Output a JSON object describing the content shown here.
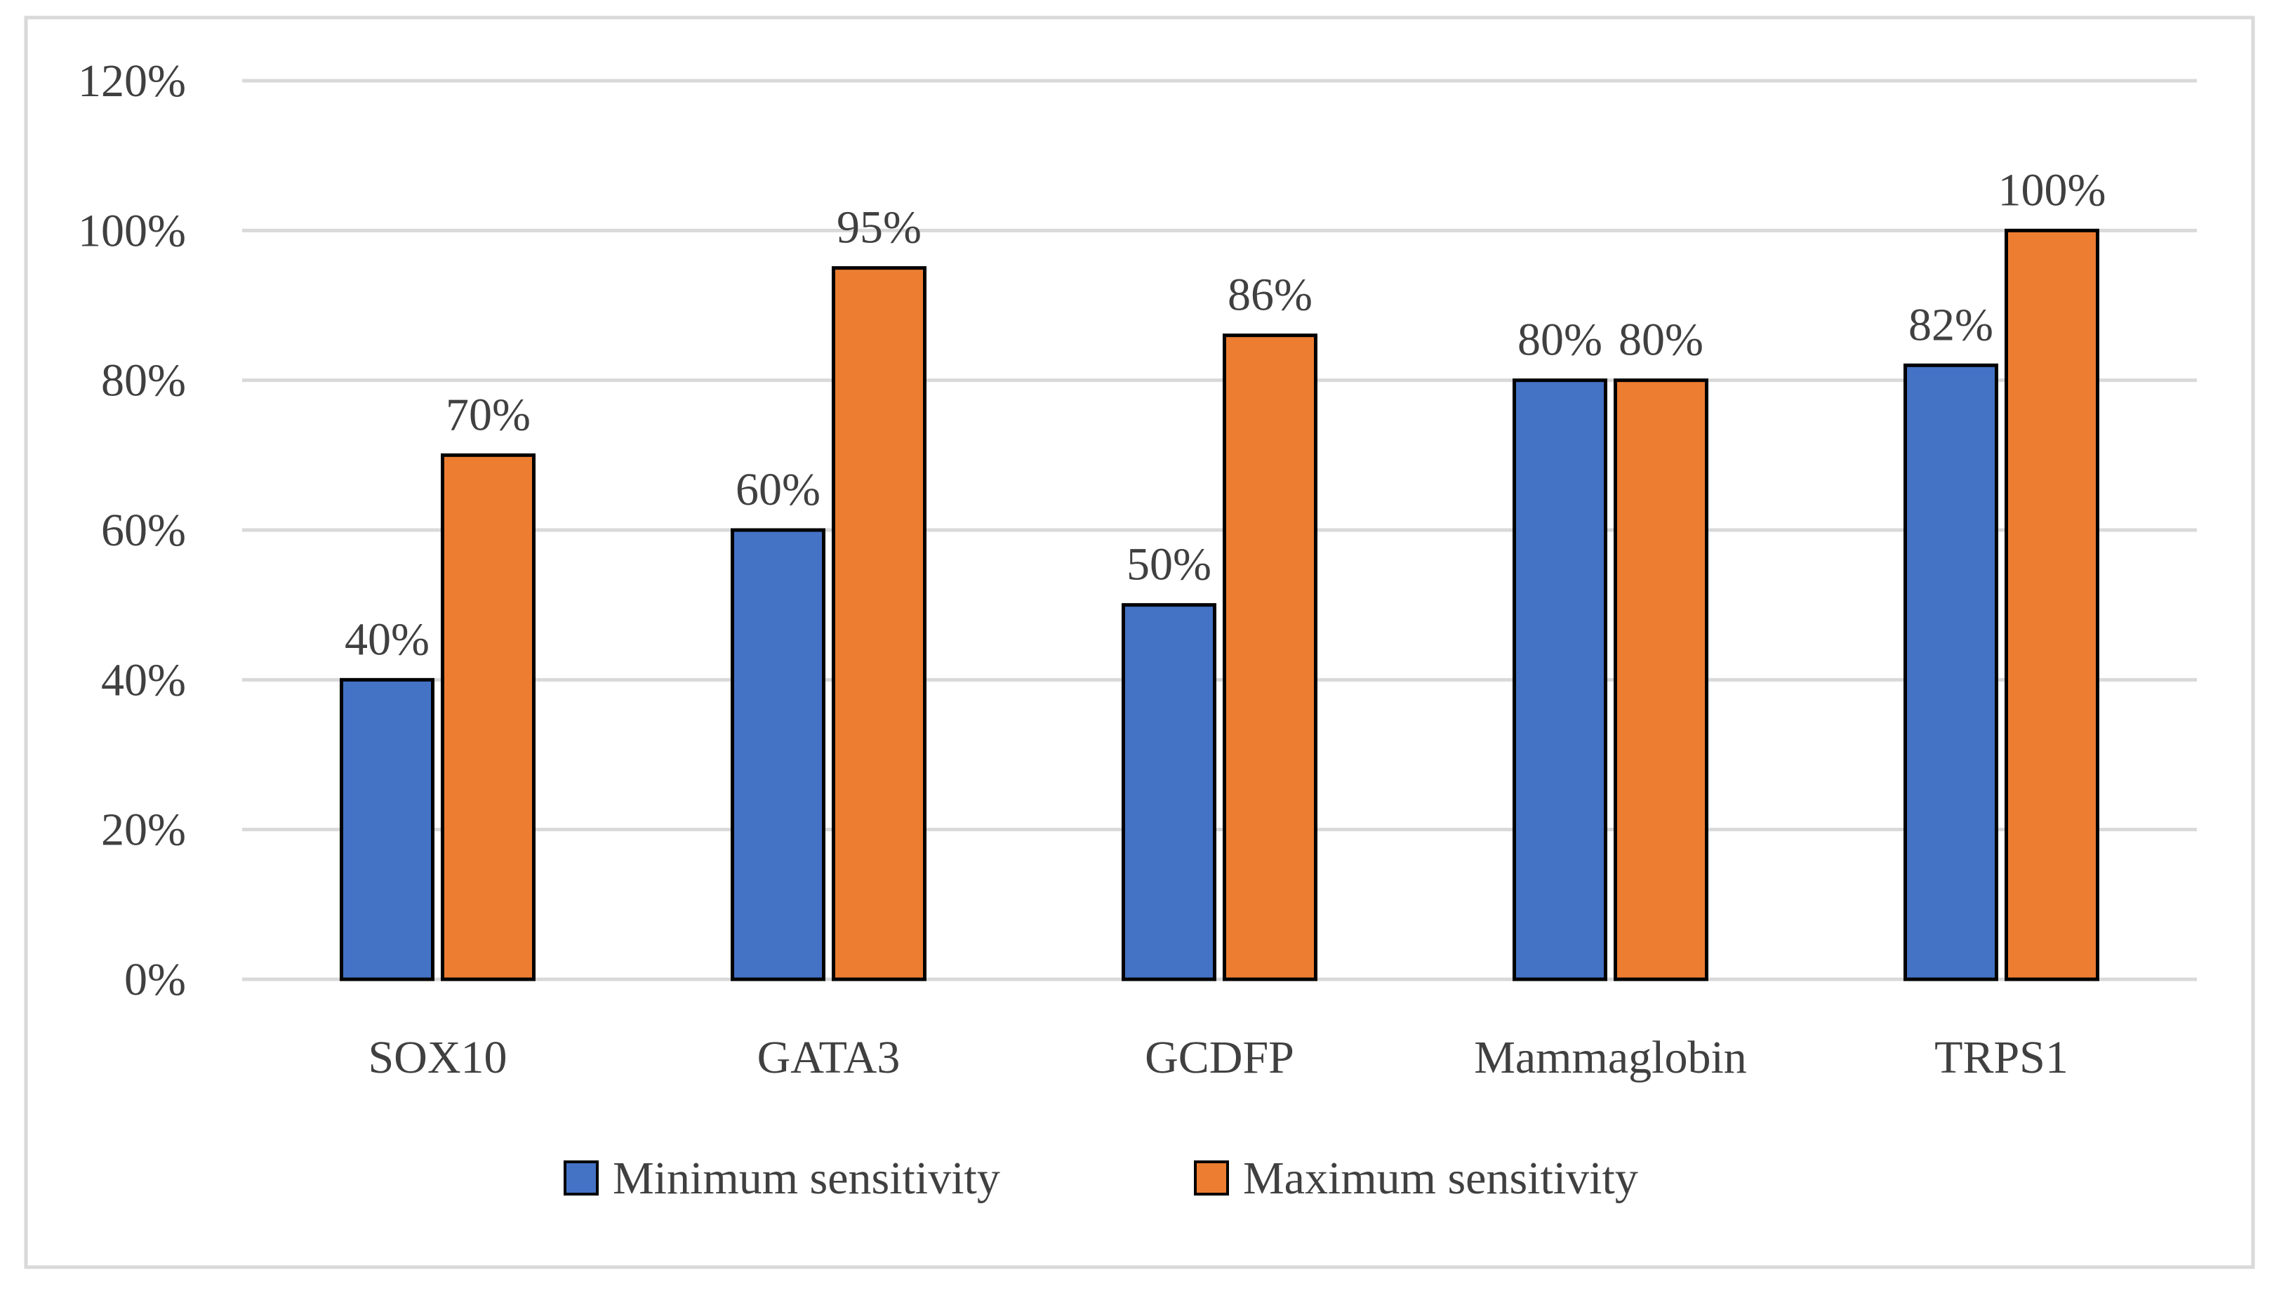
{
  "chart_data": {
    "type": "bar",
    "title": "",
    "xlabel": "",
    "ylabel": "",
    "categories": [
      "SOX10",
      "GATA3",
      "GCDFP",
      "Mammaglobin",
      "TRPS1"
    ],
    "series": [
      {
        "name": "Minimum sensitivity",
        "color": "#4472C4",
        "values": [
          40,
          60,
          50,
          80,
          82
        ],
        "labels": [
          "40%",
          "60%",
          "50%",
          "80%",
          "82%"
        ]
      },
      {
        "name": "Maximum sensitivity",
        "color": "#ED7D31",
        "values": [
          70,
          95,
          86,
          80,
          100
        ],
        "labels": [
          "70%",
          "95%",
          "86%",
          "80%",
          "100%"
        ]
      }
    ],
    "ylim": [
      0,
      120
    ],
    "yticks": [
      0,
      20,
      40,
      60,
      80,
      100,
      120
    ],
    "ytick_labels": [
      "0%",
      "20%",
      "40%",
      "60%",
      "80%",
      "100%",
      "120%"
    ],
    "grid": true,
    "legend_position": "bottom",
    "colors": {
      "grid": "#D9D9D9",
      "bar_outline": "#000000",
      "frame": "#D9D9D9",
      "text": "#404040"
    }
  }
}
